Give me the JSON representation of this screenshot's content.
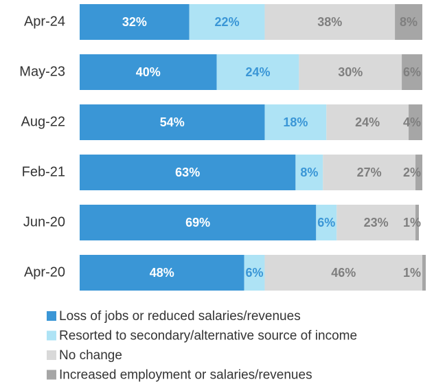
{
  "chart_data": {
    "type": "stacked-bar-horizontal",
    "categories": [
      "Apr-24",
      "May-23",
      "Aug-22",
      "Feb-21",
      "Jun-20",
      "Apr-20"
    ],
    "series": [
      {
        "name": "Loss of jobs or reduced salaries/revenues",
        "color": "#3a96d6",
        "label_color": "#ffffff",
        "values": [
          32,
          40,
          54,
          63,
          69,
          48
        ]
      },
      {
        "name": "Resorted to secondary/alternative source of income",
        "color": "#aee3f5",
        "label_color": "#3a96d6",
        "values": [
          22,
          24,
          18,
          8,
          6,
          6
        ]
      },
      {
        "name": "No change",
        "color": "#d9d9d9",
        "label_color": "#7f7f7f",
        "values": [
          38,
          30,
          24,
          27,
          23,
          46
        ]
      },
      {
        "name": "Increased employment or salaries/revenues",
        "color": "#a6a6a6",
        "label_color": "#7f7f7f",
        "values": [
          8,
          6,
          4,
          2,
          1,
          1
        ]
      }
    ],
    "value_labels": [
      [
        "32%",
        "40%",
        "54%",
        "63%",
        "69%",
        "48%"
      ],
      [
        "22%",
        "24%",
        "18%",
        "8%",
        "6%",
        "6%"
      ],
      [
        "38%",
        "30%",
        "24%",
        "27%",
        "23%",
        "46%"
      ],
      [
        "8%",
        "6%",
        "4%",
        "2%",
        "1%",
        "1%"
      ]
    ]
  }
}
